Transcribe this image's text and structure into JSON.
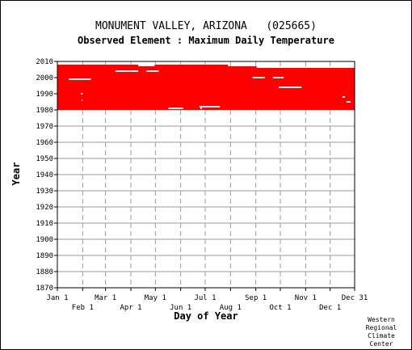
{
  "chart_data": {
    "type": "heatmap",
    "title": "MONUMENT VALLEY, ARIZONA   (025665)",
    "subtitle": "Observed Element : Maximum Daily Temperature",
    "xlabel": "Day of Year",
    "ylabel": "Year",
    "x_ticks_top": [
      "Jan 1",
      "Mar 1",
      "May 1",
      "Jul 1",
      "Sep 1",
      "Nov 1",
      "Dec 31"
    ],
    "x_ticks_bottom": [
      "Feb 1",
      "Apr 1",
      "Jun 1",
      "Aug 1",
      "Oct 1",
      "Dec 1"
    ],
    "y_ticks": [
      1870,
      1880,
      1890,
      1900,
      1910,
      1920,
      1930,
      1940,
      1950,
      1960,
      1970,
      1980,
      1990,
      2000,
      2010
    ],
    "ylim": [
      1870,
      2010
    ],
    "xlim": [
      1,
      365
    ],
    "grid": true,
    "series": [
      {
        "color": "#ff0000",
        "coverage": [
          {
            "years": [
              1980,
              2006
            ],
            "days": [
              1,
              365
            ]
          },
          {
            "years": [
              2006,
              2007
            ],
            "days": [
              1,
              245
            ]
          },
          {
            "years": [
              2007,
              2008
            ],
            "days": [
              1,
              100
            ]
          },
          {
            "years": [
              2007,
              2008
            ],
            "days": [
              120,
              210
            ]
          }
        ],
        "missing": [
          {
            "year": 1999,
            "days": [
              15,
              42
            ]
          },
          {
            "year": 2004,
            "days": [
              72,
              100
            ]
          },
          {
            "year": 2004,
            "days": [
              110,
              125
            ]
          },
          {
            "year": 2000,
            "days": [
              240,
              255
            ]
          },
          {
            "year": 2000,
            "days": [
              265,
              278
            ]
          },
          {
            "year": 1994,
            "days": [
              272,
              300
            ]
          },
          {
            "year": 1981,
            "days": [
              137,
              155
            ]
          },
          {
            "year": 1982,
            "days": [
              175,
              200
            ]
          },
          {
            "year": 1981,
            "days": [
              176,
              178
            ]
          },
          {
            "year": 1990,
            "days": [
              30,
              32
            ]
          },
          {
            "year": 1986,
            "days": [
              31,
              32
            ]
          },
          {
            "year": 1988,
            "days": [
              350,
              353
            ]
          },
          {
            "year": 1985,
            "days": [
              355,
              360
            ]
          }
        ]
      }
    ]
  },
  "credit": [
    "Western",
    "Regional",
    "Climate",
    "Center"
  ]
}
